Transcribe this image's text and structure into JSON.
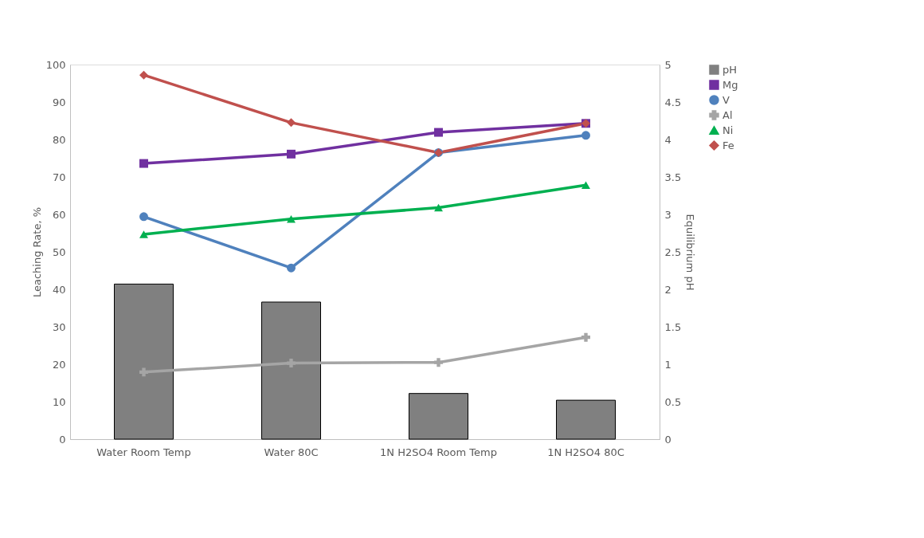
{
  "chart_data": {
    "type": "line",
    "ylabel": "Leaching Rate, %",
    "y2label": "Equilibrium pH",
    "categories": [
      "Water Room Temp",
      "Water 80C",
      "1N H2SO4 Room Temp",
      "1N H2SO4 80C"
    ],
    "series": [
      {
        "name": "pH",
        "type": "bar",
        "axis": "y2",
        "color": "#808080",
        "values": [
          2.07,
          1.83,
          0.61,
          0.52
        ]
      },
      {
        "name": "Mg",
        "marker": "square",
        "color": "#7030a0",
        "values": [
          73.6,
          76.1,
          81.9,
          84.3
        ]
      },
      {
        "name": "V",
        "marker": "circle",
        "color": "#4f81bd",
        "values": [
          59.4,
          45.7,
          76.5,
          81.1
        ]
      },
      {
        "name": "Al",
        "marker": "cross",
        "color": "#a5a5a5",
        "values": [
          17.9,
          20.3,
          20.5,
          27.2
        ]
      },
      {
        "name": "Ni",
        "marker": "triangle",
        "color": "#00b050",
        "values": [
          54.7,
          58.8,
          61.8,
          67.8
        ]
      },
      {
        "name": "Fe",
        "marker": "diamond",
        "color": "#c0504d",
        "values": [
          97.2,
          84.5,
          76.5,
          84.3
        ]
      }
    ],
    "ylim": [
      0,
      100
    ],
    "yticks": [
      0,
      10,
      20,
      30,
      40,
      50,
      60,
      70,
      80,
      90,
      100
    ],
    "y2lim": [
      0,
      5
    ],
    "y2ticks": [
      0,
      0.5,
      1,
      1.5,
      2,
      2.5,
      3,
      3.5,
      4,
      4.5,
      5
    ],
    "legend": "right",
    "grid": false,
    "line_style": "solid"
  }
}
